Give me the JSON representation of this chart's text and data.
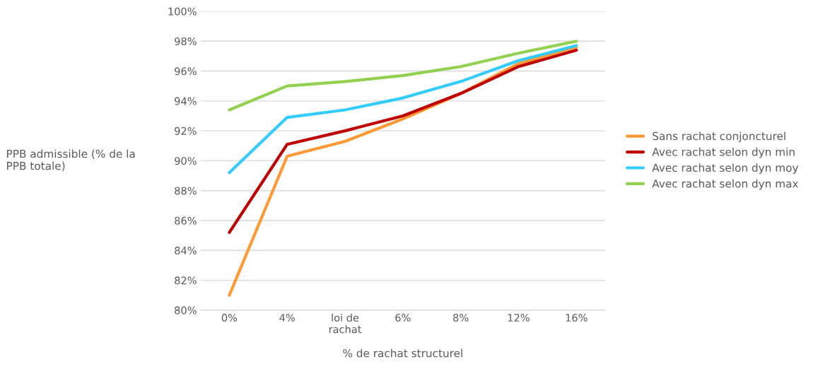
{
  "chart_data": {
    "type": "line",
    "xlabel": "% de rachat structurel",
    "ylabel": "PPB admissible (% de la\nPPB totale)",
    "categories": [
      "0%",
      "4%",
      "loi de\nrachat",
      "6%",
      "8%",
      "12%",
      "16%"
    ],
    "series": [
      {
        "name": "Sans rachat conjoncturel",
        "color": "#ff9933",
        "values": [
          81.0,
          90.3,
          91.3,
          92.8,
          94.5,
          96.5,
          97.6
        ]
      },
      {
        "name": "Avec rachat selon dyn min",
        "color": "#c00000",
        "values": [
          85.2,
          91.1,
          92.0,
          93.0,
          94.5,
          96.3,
          97.4
        ]
      },
      {
        "name": "Avec rachat selon dyn moy",
        "color": "#33ccff",
        "values": [
          89.2,
          92.9,
          93.4,
          94.2,
          95.3,
          96.7,
          97.7
        ]
      },
      {
        "name": "Avec rachat selon dyn max",
        "color": "#92d050",
        "values": [
          93.4,
          95.0,
          95.3,
          95.7,
          96.3,
          97.2,
          98.0
        ]
      }
    ],
    "ylim": [
      80,
      100
    ],
    "yticks": [
      {
        "value": 80,
        "label": "80%"
      },
      {
        "value": 82,
        "label": "82%"
      },
      {
        "value": 84,
        "label": "84%"
      },
      {
        "value": 86,
        "label": "86%"
      },
      {
        "value": 88,
        "label": "88%"
      },
      {
        "value": 90,
        "label": "90%"
      },
      {
        "value": 92,
        "label": "92%"
      },
      {
        "value": 94,
        "label": "94%"
      },
      {
        "value": 96,
        "label": "96%"
      },
      {
        "value": 98,
        "label": "98%"
      },
      {
        "value": 100,
        "label": "100%"
      }
    ],
    "grid": "y",
    "legend": "right",
    "marker": "none",
    "line_style": "solid"
  }
}
